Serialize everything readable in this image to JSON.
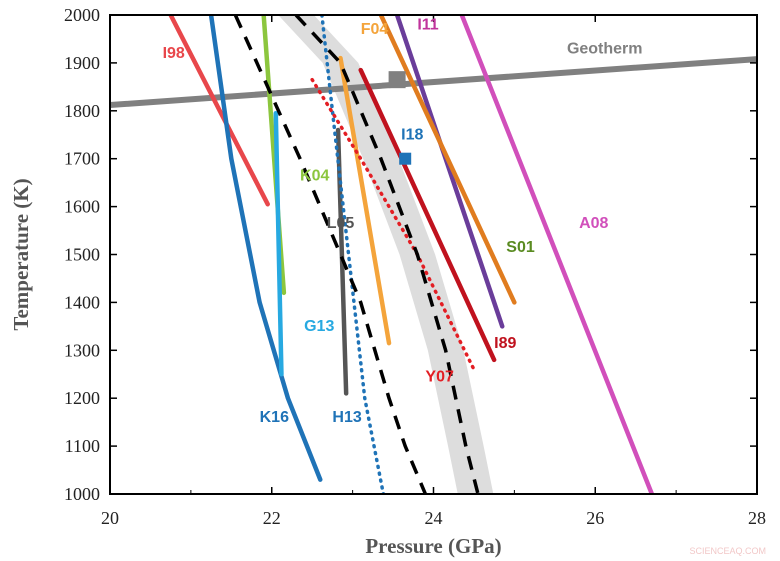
{
  "chart_data": {
    "type": "line",
    "xlabel": "Pressure (GPa)",
    "ylabel": "Temperature (K)",
    "xlim": [
      20,
      28
    ],
    "ylim": [
      1000,
      2000
    ],
    "xticks": [
      20,
      22,
      24,
      26,
      28
    ],
    "yticks": [
      1000,
      1100,
      1200,
      1300,
      1400,
      1500,
      1600,
      1700,
      1800,
      1900,
      2000
    ],
    "grid": false,
    "band": {
      "color": "#dddddd",
      "center": [
        [
          22.3,
          2000
        ],
        [
          22.85,
          1900
        ],
        [
          23.35,
          1700
        ],
        [
          23.8,
          1500
        ],
        [
          24.15,
          1300
        ],
        [
          24.4,
          1100
        ],
        [
          24.52,
          1000
        ]
      ],
      "half_width_gpa": 0.22
    },
    "series": [
      {
        "name": "Geotherm",
        "color": "#808080",
        "dash": "solid",
        "width": 6,
        "x": [
          20,
          28
        ],
        "y": [
          1812,
          1908
        ],
        "label_at": [
          25.65,
          1920
        ]
      },
      {
        "name": "I98",
        "color": "#e8474b",
        "dash": "solid",
        "width": 4.5,
        "x": [
          20.75,
          21.95
        ],
        "y": [
          2000,
          1605
        ],
        "label_at": [
          20.65,
          1910
        ]
      },
      {
        "name": "K16",
        "color": "#1f73b7",
        "dash": "solid",
        "width": 4.5,
        "x": [
          21.25,
          21.5,
          21.85,
          22.2,
          22.6
        ],
        "y": [
          2000,
          1700,
          1400,
          1200,
          1030
        ],
        "label_at": [
          21.85,
          1150
        ]
      },
      {
        "name": "K04",
        "color": "#8cc63e",
        "dash": "solid",
        "width": 4.5,
        "x": [
          21.9,
          22.15
        ],
        "y": [
          2000,
          1420
        ],
        "label_at": [
          22.35,
          1655
        ]
      },
      {
        "name": "G13",
        "color": "#27a9e1",
        "dash": "solid",
        "width": 4.5,
        "x": [
          22.05,
          22.12
        ],
        "y": [
          1795,
          1250
        ],
        "label_at": [
          22.4,
          1340
        ]
      },
      {
        "name": "L05",
        "color": "#555555",
        "dash": "solid",
        "width": 4.5,
        "x": [
          22.82,
          22.92
        ],
        "y": [
          1760,
          1210
        ],
        "label_at": [
          22.68,
          1555
        ]
      },
      {
        "name": "H13",
        "color": "#1f73b7",
        "dash": "dotted",
        "width": 3.5,
        "x": [
          22.62,
          22.75,
          22.95,
          23.15,
          23.38
        ],
        "y": [
          2000,
          1800,
          1500,
          1200,
          1000
        ],
        "label_at": [
          22.75,
          1150
        ]
      },
      {
        "name": "F04",
        "color": "#f4a43b",
        "dash": "solid",
        "width": 4.5,
        "x": [
          22.85,
          23.45
        ],
        "y": [
          1910,
          1315
        ],
        "label_at": [
          23.1,
          1960
        ]
      },
      {
        "name": "Y07",
        "color": "#e31e24",
        "dash": "dotted",
        "width": 3.5,
        "x": [
          22.5,
          23.1,
          23.8,
          24.5
        ],
        "y": [
          1865,
          1700,
          1500,
          1260
        ],
        "label_at": [
          23.9,
          1235
        ]
      },
      {
        "name": "I18",
        "color": "#1f73b7",
        "marker": "square",
        "x": [
          23.65
        ],
        "y": [
          1700
        ],
        "label_at": [
          23.6,
          1740
        ]
      },
      {
        "name": "I89",
        "color": "#c0121e",
        "dash": "solid",
        "width": 4.5,
        "x": [
          23.1,
          24.75
        ],
        "y": [
          1885,
          1280
        ],
        "label_at": [
          24.75,
          1305
        ]
      },
      {
        "name": "I11",
        "color": "#6a3d9a",
        "dash": "solid",
        "width": 4.5,
        "x": [
          23.55,
          24.85
        ],
        "y": [
          2000,
          1350
        ],
        "label_at": [
          23.8,
          1970
        ]
      },
      {
        "name": "S01",
        "color": "#e07c1f",
        "dash": "solid",
        "width": 4.5,
        "x": [
          23.35,
          25.0
        ],
        "y": [
          2000,
          1400
        ],
        "label_at": [
          24.9,
          1505
        ]
      },
      {
        "name": "A08",
        "color": "#d14fbb",
        "dash": "solid",
        "width": 4.5,
        "x": [
          24.35,
          26.7
        ],
        "y": [
          2000,
          1000
        ],
        "label_at": [
          25.8,
          1555
        ]
      },
      {
        "name": "",
        "color": "#000000",
        "dash": "dashed",
        "width": 3.5,
        "x": [
          21.55,
          22.35,
          23.1,
          23.45,
          23.65,
          23.9
        ],
        "y": [
          2000,
          1700,
          1400,
          1200,
          1100,
          1000
        ]
      },
      {
        "name": "",
        "color": "#000000",
        "dash": "dashed",
        "width": 3.5,
        "x": [
          22.3,
          22.85,
          23.35,
          23.8,
          24.15,
          24.4,
          24.55
        ],
        "y": [
          2000,
          1900,
          1700,
          1500,
          1300,
          1100,
          1000
        ]
      }
    ],
    "markers": [
      {
        "name": "",
        "color": "#808080",
        "shape": "square",
        "x": 23.55,
        "y": 1865,
        "size": 17
      }
    ],
    "label_colors": {
      "I98": "#e8474b",
      "K16": "#1f73b7",
      "K04": "#8cc63e",
      "G13": "#27a9e1",
      "L05": "#555555",
      "H13": "#1f73b7",
      "F04": "#f4a43b",
      "Y07": "#e31e24",
      "I18": "#1f73b7",
      "I89": "#c0121e",
      "I11": "#c0349c",
      "S01": "#5a8b21",
      "A08": "#d14fbb",
      "Geotherm": "#808080"
    }
  },
  "watermark": "SCIENCEAQ.COM"
}
